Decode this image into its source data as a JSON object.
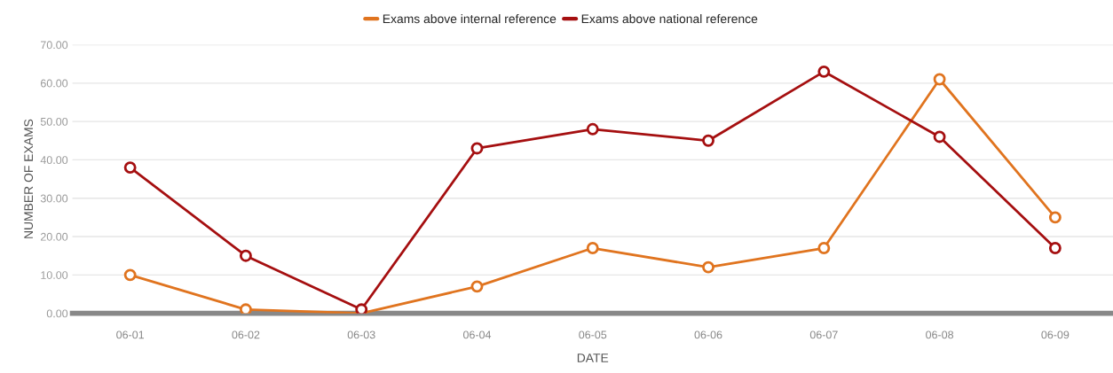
{
  "chart_data": {
    "type": "line",
    "xlabel": "DATE",
    "ylabel": "NUMBER OF EXAMS",
    "categories": [
      "06-01",
      "06-02",
      "06-03",
      "06-04",
      "06-05",
      "06-06",
      "06-07",
      "06-08",
      "06-09"
    ],
    "series": [
      {
        "name": "Exams above internal reference",
        "color": "#e0741f",
        "values": [
          10,
          1,
          0,
          7,
          17,
          12,
          17,
          61,
          25
        ]
      },
      {
        "name": "Exams above national reference",
        "color": "#a50f10",
        "values": [
          38,
          15,
          1,
          43,
          48,
          45,
          63,
          46,
          17
        ]
      }
    ],
    "ylim": [
      0,
      70
    ],
    "yticks": [
      {
        "value": 0,
        "label": "0.00"
      },
      {
        "value": 10,
        "label": "10.00"
      },
      {
        "value": 20,
        "label": "20.00"
      },
      {
        "value": 30,
        "label": "30.00"
      },
      {
        "value": 40,
        "label": "40.00"
      },
      {
        "value": 50,
        "label": "50.00"
      },
      {
        "value": 60,
        "label": "60.00"
      },
      {
        "value": 70,
        "label": "70.00"
      }
    ],
    "grid": "y",
    "legend": "top",
    "marker": "circle",
    "line_style": "solid"
  }
}
